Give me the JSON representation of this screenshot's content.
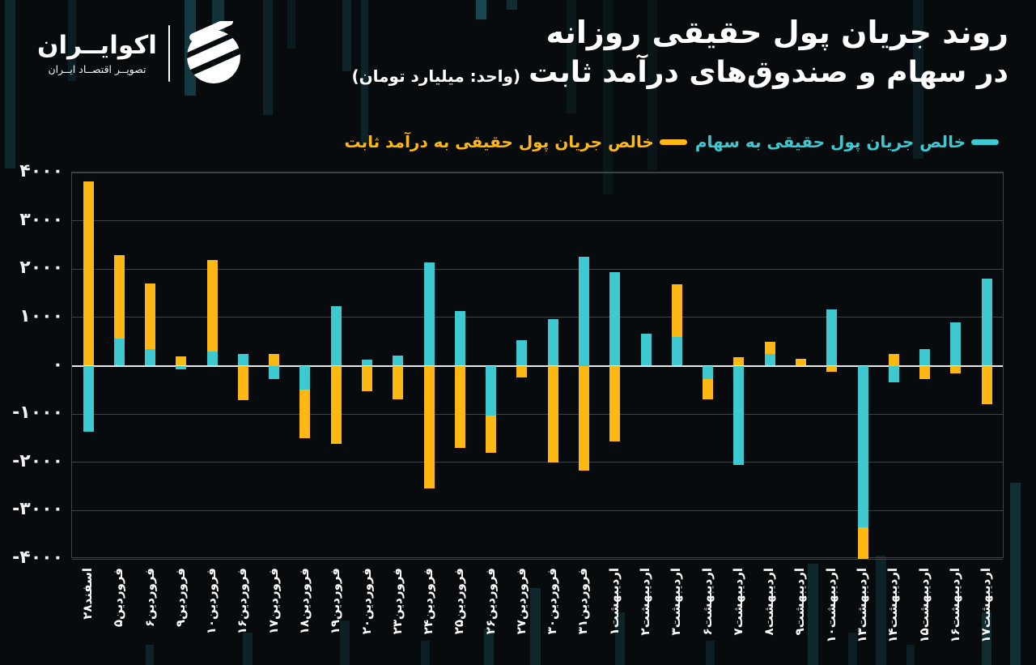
{
  "header": {
    "brand": "اکوایــران",
    "tagline": "تصویــر اقتصــاد ایــران"
  },
  "title": {
    "line1": "روند جریان پول حقیقی روزانه",
    "line2": "در سهام و صندوق‌های درآمد ثابت",
    "unit": "(واحد: میلیارد تومان)"
  },
  "legend": [
    {
      "label": "خالص جریان پول حقیقی به سهام",
      "color": "#3EC9D1"
    },
    {
      "label": "خالص جریان پول حقیقی به درآمد ثابت",
      "color": "#FDB813"
    }
  ],
  "colors": {
    "stocks": "#3EC9D1",
    "fixed_income": "#FDB813",
    "background": "#070B0D",
    "gridline": "#3D4246",
    "zero_line": "#E8E8E6"
  },
  "chart_data": {
    "type": "bar",
    "stacked": true,
    "title": "روند جریان پول حقیقی روزانه در سهام و صندوق‌های درآمد ثابت",
    "unit": "میلیارد تومان",
    "categories": [
      "اسفند۲۸",
      "فروردین۵",
      "فروردین۶",
      "فروردین۹",
      "فروردین۱۰",
      "فروردین۱۶",
      "فروردین۱۷",
      "فروردین۱۸",
      "فروردین۱۹",
      "فروردین۲۰",
      "فروردین۲۳",
      "فروردین۲۴",
      "فروردین۲۵",
      "فروردین۲۶",
      "فروردین۲۷",
      "فروردین۳۰",
      "فروردین۳۱",
      "اردیبهشت۱",
      "اردیبهشت۲",
      "اردیبهشت۳",
      "اردیبهشت۶",
      "اردیبهشت۷",
      "اردیبهشت۸",
      "اردیبهشت۹",
      "اردیبهشت۱۰",
      "اردیبهشت۱۳",
      "اردیبهشت۱۴",
      "اردیبهشت۱۵",
      "اردیبهشت۱۶",
      "اردیبهشت۱۷"
    ],
    "series": [
      {
        "name": "خالص جریان پول حقیقی به سهام",
        "color": "#3EC9D1",
        "values": [
          -1370,
          560,
          350,
          -80,
          300,
          240,
          -280,
          -500,
          1240,
          120,
          210,
          2140,
          1130,
          -1030,
          530,
          960,
          2250,
          1940,
          660,
          590,
          -280,
          -2060,
          240,
          0,
          1170,
          -3350,
          -340,
          340,
          890,
          1800
        ]
      },
      {
        "name": "خالص جریان پول حقیقی به درآمد ثابت",
        "color": "#FDB813",
        "values": [
          3820,
          1730,
          1350,
          200,
          1890,
          -710,
          250,
          -1000,
          -1620,
          -520,
          -700,
          -2540,
          -1700,
          -780,
          -250,
          -2010,
          -2180,
          -1560,
          0,
          1100,
          -410,
          170,
          260,
          150,
          -130,
          -650,
          250,
          -280,
          -160,
          -800
        ]
      }
    ],
    "ylim": [
      -4000,
      4000
    ],
    "ytick_interval": 1000,
    "ytick_labels": [
      "۴۰۰۰",
      "۳۰۰۰",
      "۲۰۰۰",
      "۱۰۰۰",
      "۰",
      "-۱۰۰۰",
      "-۲۰۰۰",
      "-۳۰۰۰",
      "-۴۰۰۰"
    ],
    "grid": true,
    "zero_line": true,
    "legend_position": "top-right"
  }
}
